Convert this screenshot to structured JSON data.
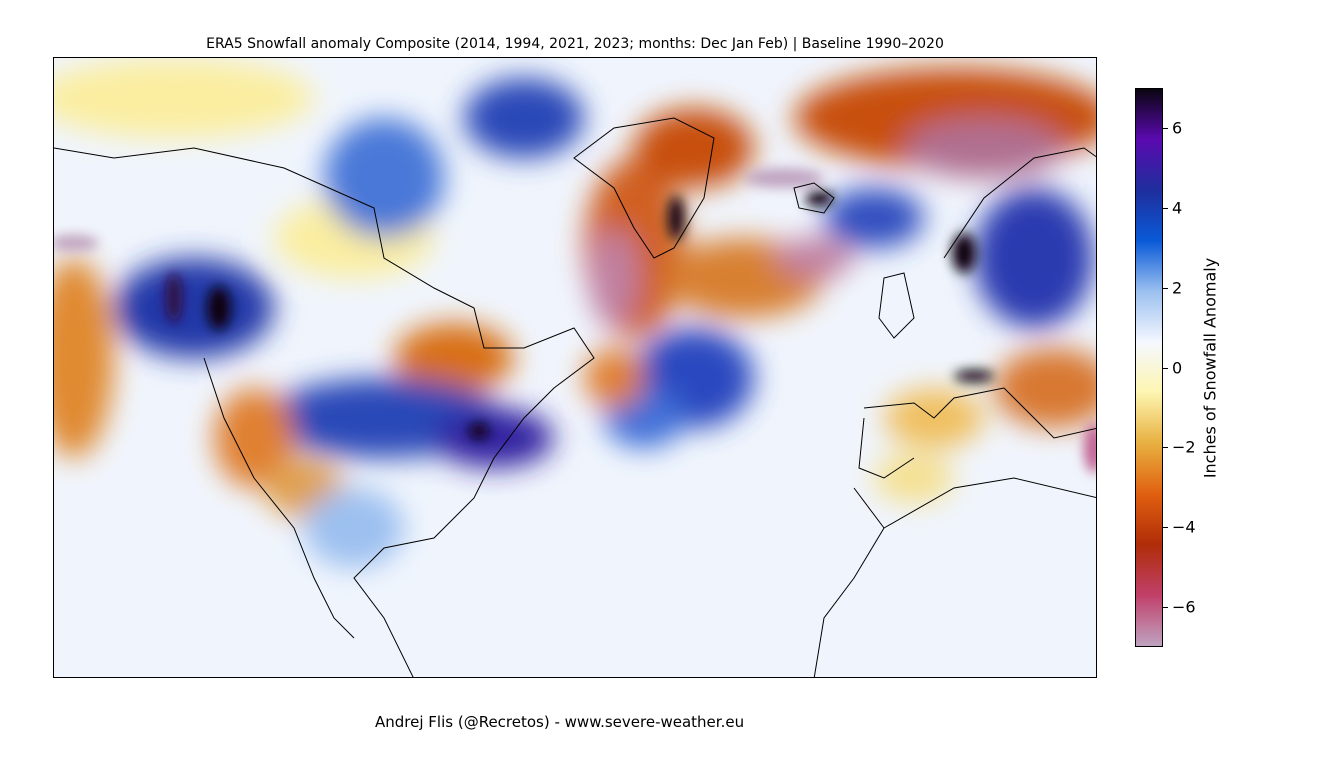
{
  "title": "ERA5 Snowfall anomaly Composite (2014, 1994, 2021, 2023; months: Dec Jan Feb) | Baseline 1990–2020",
  "colorbar": {
    "label": "Inches of Snowfall Anomaly",
    "range": [
      -7,
      7
    ],
    "ticks": [
      "6",
      "4",
      "2",
      "0",
      "−2",
      "−4",
      "−6"
    ],
    "tick_values": [
      6,
      4,
      2,
      0,
      -2,
      -4,
      -6
    ],
    "colors": [
      "#bfa3c0",
      "#c0406a",
      "#b02c08",
      "#e06010",
      "#e8b040",
      "#fdf5b0",
      "#f5f8ff",
      "#9cc0f0",
      "#0a5ad8",
      "#1e2e9c",
      "#5a0ab0",
      "#0a0510"
    ]
  },
  "map": {
    "region": "North America, North Atlantic, Europe, North Africa",
    "background": "#f0f5fd"
  },
  "credit": "Andrej Flis (@Recretos) - www.severe-weather.eu"
}
